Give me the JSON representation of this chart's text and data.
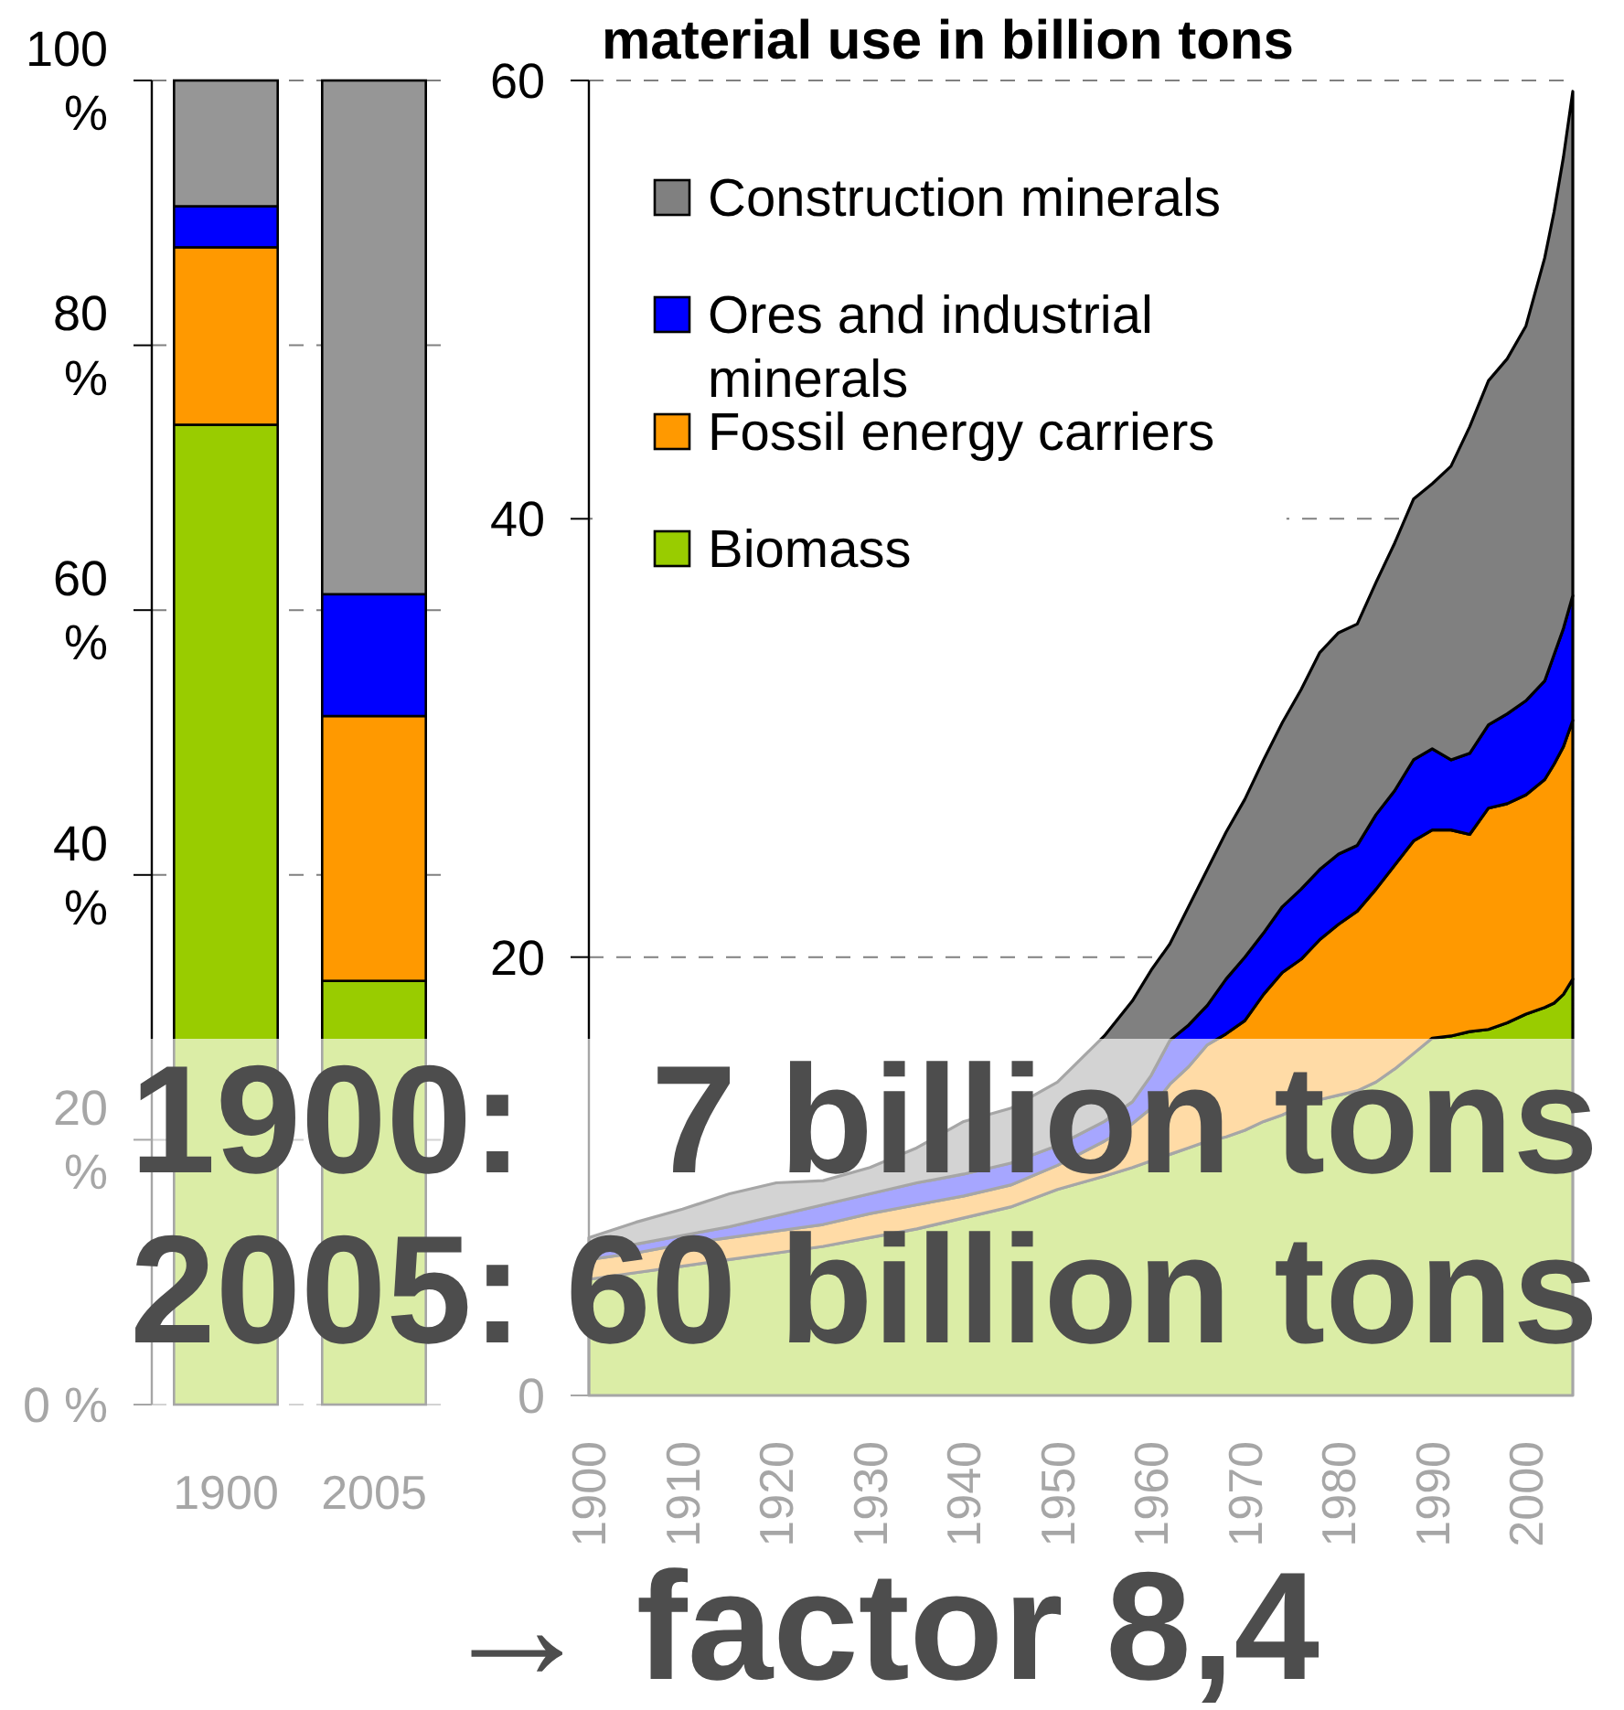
{
  "chart_data": [
    {
      "type": "bar",
      "stacked": true,
      "categories": [
        "1900",
        "2005"
      ],
      "series": [
        {
          "color": "#99cc00",
          "values": [
            74,
            32
          ]
        },
        {
          "color": "#ff9900",
          "values": [
            13.4,
            20
          ]
        },
        {
          "color": "#0000ff",
          "values": [
            3.1,
            9.2
          ]
        },
        {
          "color": "#969696",
          "values": [
            9.5,
            38.8
          ]
        }
      ],
      "ylim": [
        0,
        100
      ],
      "yticks": [
        {
          "value": 0,
          "label": "0 %"
        },
        {
          "value": 20,
          "label": "20 %"
        },
        {
          "value": 40,
          "label": "40 %"
        },
        {
          "value": 60,
          "label": "60 %"
        },
        {
          "value": 80,
          "label": "80 %"
        },
        {
          "value": 100,
          "label": "100 %"
        }
      ],
      "grid": "y"
    },
    {
      "type": "area",
      "stacked": true,
      "title": "material use in billion tons",
      "x": [
        1900,
        1905,
        1910,
        1915,
        1920,
        1925,
        1930,
        1935,
        1940,
        1945,
        1950,
        1955,
        1958,
        1960,
        1962,
        1964,
        1966,
        1968,
        1970,
        1972,
        1974,
        1976,
        1978,
        1980,
        1982,
        1984,
        1986,
        1988,
        1990,
        1992,
        1994,
        1996,
        1998,
        2000,
        2002,
        2003,
        2004,
        2005
      ],
      "series": [
        {
          "name": "Biomass",
          "color": "#99cc00",
          "values": [
            5.3,
            5.6,
            5.9,
            6.2,
            6.5,
            6.8,
            7.2,
            7.6,
            8.1,
            8.6,
            9.4,
            10.0,
            10.4,
            10.7,
            11.0,
            11.3,
            11.6,
            11.8,
            12.1,
            12.5,
            12.8,
            13.2,
            13.5,
            13.7,
            13.9,
            14.3,
            14.9,
            15.6,
            16.3,
            16.4,
            16.6,
            16.7,
            17.0,
            17.4,
            17.7,
            17.9,
            18.3,
            19.0
          ]
        },
        {
          "name": "Fossil energy carriers",
          "color": "#ff9900",
          "values": [
            0.9,
            0.9,
            1.0,
            1.0,
            1.0,
            1.0,
            1.1,
            1.1,
            1.0,
            1.0,
            1.1,
            1.6,
            2.0,
            2.4,
            3.2,
            3.7,
            4.4,
            4.7,
            5.0,
            5.8,
            6.5,
            6.7,
            7.3,
            7.8,
            8.2,
            8.8,
            9.3,
            9.7,
            9.5,
            9.4,
            9.0,
            10.1,
            10.0,
            10.0,
            10.4,
            10.9,
            11.3,
            11.8
          ]
        },
        {
          "name": "Ores and industrial minerals",
          "color": "#0000ff",
          "values": [
            0.3,
            0.4,
            0.4,
            0.5,
            0.7,
            0.9,
            0.9,
            1.0,
            1.0,
            1.0,
            0.9,
            0.9,
            1.0,
            1.5,
            2.0,
            1.9,
            1.8,
            2.5,
            2.9,
            2.8,
            3.0,
            3.2,
            3.2,
            3.2,
            3.0,
            3.4,
            3.4,
            3.7,
            3.7,
            3.2,
            3.7,
            3.8,
            4.1,
            4.3,
            4.5,
            5.0,
            5.4,
            5.7
          ]
        },
        {
          "name": "Construction minerals",
          "color": "#808080",
          "values": [
            0.7,
            1.0,
            1.2,
            1.5,
            1.5,
            1.1,
            1.2,
            1.6,
            2.4,
            2.5,
            2.9,
            3.9,
            4.6,
            4.8,
            4.4,
            5.4,
            6.2,
            6.7,
            7.2,
            7.9,
            8.4,
            9.1,
            9.9,
            10.1,
            10.1,
            10.6,
            11.3,
            11.9,
            12.1,
            13.4,
            14.9,
            15.7,
            16.2,
            17.1,
            19.3,
            20.2,
            21.5,
            23.0
          ]
        }
      ],
      "xlim": [
        1900,
        2005
      ],
      "xticks": [
        1900,
        1910,
        1920,
        1930,
        1940,
        1950,
        1960,
        1970,
        1980,
        1990,
        2000
      ],
      "ylim": [
        0,
        60
      ],
      "yticks": [
        0,
        20,
        40,
        60
      ],
      "grid": "y",
      "legend": "top left",
      "annotations": [
        "1900:   7 billion tons",
        "2005: 60 billion tons",
        "→ factor 8,4"
      ]
    }
  ]
}
